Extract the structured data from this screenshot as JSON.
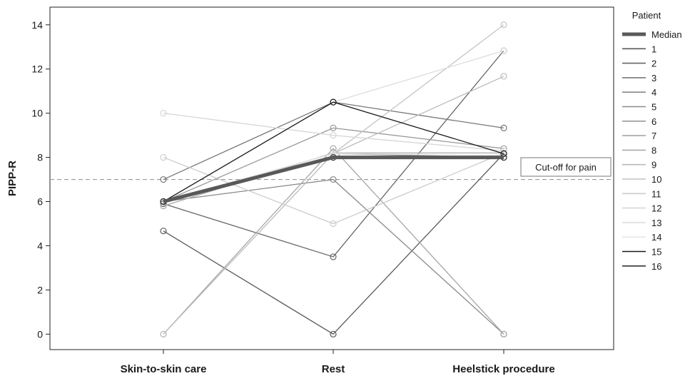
{
  "chart_data": {
    "type": "line",
    "categories": [
      "Skin-to-skin care",
      "Rest",
      "Heelstick procedure"
    ],
    "ylabel": "PIPP-R",
    "ylim": [
      -0.7,
      14.8
    ],
    "yticks": [
      0,
      2,
      4,
      6,
      8,
      10,
      12,
      14
    ],
    "reference_line": {
      "value": 7,
      "label": "Cut-off for pain"
    },
    "legend": {
      "title": "Patient",
      "placement": "right"
    },
    "series": [
      {
        "name": "Median",
        "values": [
          6.0,
          8.0,
          8.0
        ],
        "color": "#595959",
        "width": 5
      },
      {
        "name": "1",
        "values": [
          4.67,
          0.0,
          8.17
        ],
        "color": "#595959",
        "width": 1.3
      },
      {
        "name": "2",
        "values": [
          5.9,
          3.5,
          12.83
        ],
        "color": "#666666",
        "width": 1.3
      },
      {
        "name": "3",
        "values": [
          7.0,
          10.5,
          9.33
        ],
        "color": "#777777",
        "width": 1.3
      },
      {
        "name": "4",
        "values": [
          6.0,
          7.0,
          0.0
        ],
        "color": "#888888",
        "width": 1.3
      },
      {
        "name": "5",
        "values": [
          6.0,
          8.17,
          8.0
        ],
        "color": "#8a8a8a",
        "width": 1.3
      },
      {
        "name": "6",
        "values": [
          6.0,
          9.33,
          8.4
        ],
        "color": "#999999",
        "width": 1.3
      },
      {
        "name": "7",
        "values": [
          0.0,
          8.4,
          0.0
        ],
        "color": "#a6a6a6",
        "width": 1.3
      },
      {
        "name": "8",
        "values": [
          5.8,
          8.2,
          8.2
        ],
        "color": "#aaaaaa",
        "width": 1.3
      },
      {
        "name": "9",
        "values": [
          0.0,
          8.17,
          11.67
        ],
        "color": "#bbbbbb",
        "width": 1.3
      },
      {
        "name": "10",
        "values": [
          6.0,
          8.17,
          14.0
        ],
        "color": "#c4c4c4",
        "width": 1.3
      },
      {
        "name": "11",
        "values": [
          8.0,
          5.0,
          8.2
        ],
        "color": "#cccccc",
        "width": 1.3
      },
      {
        "name": "12",
        "values": [
          10.0,
          9.0,
          8.3
        ],
        "color": "#d6d6d6",
        "width": 1.3
      },
      {
        "name": "13",
        "values": [
          6.0,
          10.5,
          12.83
        ],
        "color": "#dddddd",
        "width": 1.3
      },
      {
        "name": "14",
        "values": [
          6.0,
          8.17,
          8.1
        ],
        "color": "#e6e6e6",
        "width": 1.3
      },
      {
        "name": "15",
        "values": [
          6.0,
          10.5,
          8.17
        ],
        "color": "#1a1a1a",
        "width": 1.3
      },
      {
        "name": "16",
        "values": [
          6.0,
          8.0,
          8.0
        ],
        "color": "#333333",
        "width": 1.3
      }
    ]
  }
}
